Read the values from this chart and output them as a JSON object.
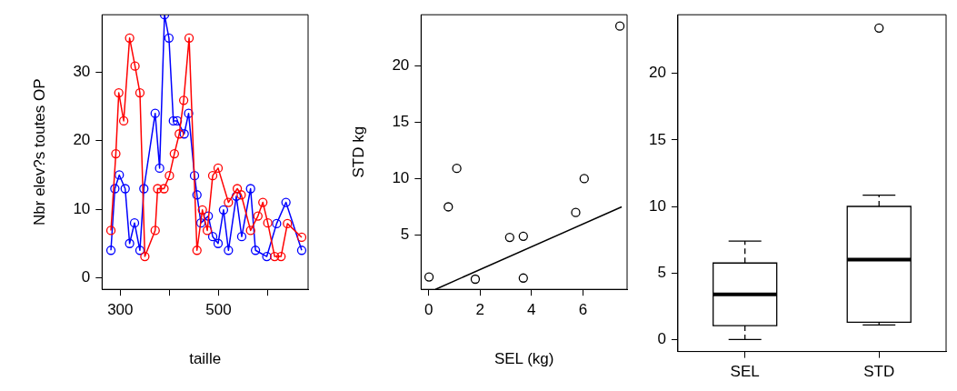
{
  "chart_data": [
    {
      "type": "line",
      "xlabel": "taille",
      "ylabel": "Nbr elev?s toutes OP",
      "xlim": [
        263,
        682
      ],
      "xticks": [
        300,
        {
          "value": 400,
          "label": null
        },
        500,
        {
          "value": 600,
          "label": null
        }
      ],
      "ylim": [
        -1.7,
        38.4
      ],
      "yticks": [
        0,
        10,
        20,
        30
      ],
      "grid": false,
      "marker": "circle",
      "line_style": "solid",
      "series": [
        {
          "color": "#ff0000",
          "x": [
            281,
            291,
            297,
            307,
            319,
            330,
            340,
            350,
            371,
            376,
            389,
            400,
            410,
            420,
            429,
            440,
            456,
            467,
            477,
            488,
            499,
            520,
            538,
            546,
            565,
            580,
            590,
            600,
            614,
            627,
            640,
            669
          ],
          "values": [
            6.9,
            18.1,
            27,
            22.9,
            35,
            30.9,
            27,
            3.1,
            6.9,
            13,
            13,
            14.9,
            18.1,
            21,
            25.9,
            35,
            4,
            9.9,
            6.9,
            14.9,
            16,
            11,
            13,
            12.1,
            6.9,
            9,
            11,
            8,
            3.1,
            3.1,
            7.9,
            5.9
          ]
        },
        {
          "color": "#0000ff",
          "x": [
            281,
            289,
            298,
            310,
            319,
            329,
            340,
            348,
            371,
            380,
            390,
            399,
            408,
            416,
            430,
            439,
            451,
            456,
            464,
            479,
            488,
            499,
            510,
            520,
            536,
            547,
            565,
            575,
            598,
            618,
            637,
            669
          ],
          "values": [
            4,
            13,
            15,
            13,
            5,
            8,
            4,
            13,
            24,
            16,
            38.4,
            35,
            22.9,
            22.9,
            21,
            24,
            14.9,
            12.1,
            8,
            9,
            6,
            5,
            9.9,
            4,
            11.9,
            6,
            13,
            4,
            3.1,
            7.9,
            11,
            4
          ]
        }
      ]
    },
    {
      "type": "scatter",
      "xlabel": "SEL (kg)",
      "ylabel": "STD kg",
      "xlim": [
        -0.3,
        7.72
      ],
      "xticks": [
        0,
        2,
        4,
        6
      ],
      "ylim": [
        0.2,
        24.5
      ],
      "yticks": [
        5,
        10,
        15,
        20
      ],
      "grid": false,
      "marker": "circle",
      "series": [
        {
          "color": "#000000",
          "x": [
            0.01,
            0.76,
            1.09,
            1.81,
            3.15,
            3.68,
            3.68,
            5.72,
            6.05,
            7.44
          ],
          "values": [
            1.3,
            7.5,
            10.9,
            1.1,
            4.8,
            4.9,
            1.2,
            7.0,
            10.0,
            23.5
          ]
        },
        {
          "type": "line",
          "marker": "none",
          "color": "#000000",
          "x": [
            0.26,
            7.51
          ],
          "values": [
            0.2,
            7.5
          ]
        }
      ]
    },
    {
      "type": "box",
      "categories": [
        "SEL",
        "STD"
      ],
      "ylim": [
        -0.9,
        24.4
      ],
      "yticks": [
        0,
        5,
        10,
        15,
        20
      ],
      "grid": false,
      "boxes": [
        {
          "low": 0,
          "q1": 1.05,
          "median": 3.4,
          "q3": 5.75,
          "high": 7.4
        },
        {
          "low": 1.1,
          "q1": 1.3,
          "median": 6,
          "q3": 10,
          "high": 10.85,
          "outliers": [
            23.4
          ]
        }
      ]
    }
  ]
}
